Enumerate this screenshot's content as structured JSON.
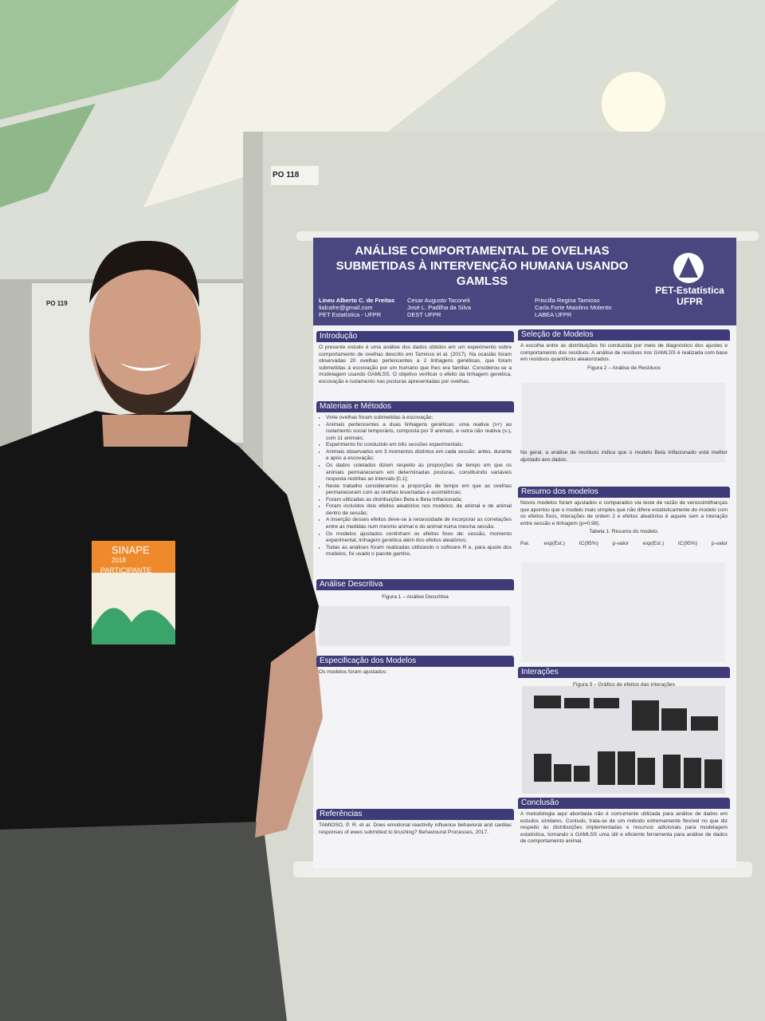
{
  "booth_labels": [
    "PO 118",
    "PO 119"
  ],
  "badge": {
    "event": "SINAPE",
    "year": "2018",
    "role": "PARTICIPANTE"
  },
  "poster": {
    "title": "ANÁLISE COMPORTAMENTAL DE OVELHAS SUBMETIDAS À INTERVENÇÃO HUMANA USANDO GAMLSS",
    "logo": {
      "name": "PET-Estatística",
      "org": "UFPR"
    },
    "authors": [
      {
        "name": "Lineu Alberto C. de Freitas",
        "line2": "lialcafre@gmail.com",
        "line3": "PET Estatística - UFPR"
      },
      {
        "name": "Cesar Augusto Taconeli",
        "line2": "José L. Padilha da Silva",
        "line3": "DEST UFPR"
      },
      {
        "name": "Priscilla Regina Tamioso",
        "line2": "Carla Forte Maiolino Molento",
        "line3": "LABEA UFPR"
      }
    ],
    "left": [
      {
        "heading": "Introdução",
        "text": "O presente estudo é uma análise dos dados obtidos em um experimento sobre comportamento de ovelhas descrito em Tamioso et al. (2017). Na ocasião foram observadas 20 ovelhas pertencentes a 2 linhagens genéticas, que foram submetidas à escovação por um humano que lhes era familiar. Considerou-se a modelagem usando GAMLSS. O objetivo verificar o efeito da linhagem genética, escovação e isolamento nas posturas apresentadas por ovelhas."
      },
      {
        "heading": "Materiais e Métodos",
        "bullets": [
          "Vinte ovelhas foram submetidas à escovação;",
          "Animais pertencentes a duas linhagens genéticas: uma reativa (s+) ao isolamento social temporário, composta por 9 animais, e outra não reativa (s-), com 11 animais;",
          "Experimento foi conduzido em três sessões experimentais;",
          "Animais observados em 3 momentos distintos em cada sessão: antes, durante e após a escovação;",
          "Os dados coletados dizem respeito às proporções de tempo em que os animais permaneceram em determinadas posturas, constituindo variáveis resposta restritas ao intervalo [0,1];",
          "Neste trabalho consideramos a proporção de tempo em que as ovelhas permaneceram com as orelhas levantadas e assimétricas;",
          "Foram utilizadas as distribuições Beta e Beta Inflacionada;",
          "Foram incluídos dois efeitos aleatórios nos modelos: de animal e de animal dentro de sessão;",
          "A inserção desses efeitos deve-se à necessidade de incorporar as correlações entre as medidas num mesmo animal e do animal numa mesma sessão.",
          "Os modelos ajustados continham os efeitos fixos de: sessão, momento experimental, linhagem genética além dos efeitos aleatórios;",
          "Todas as análises foram realizadas utilizando o software R e, para ajuste dos modelos, foi usado o pacote gamlss."
        ]
      },
      {
        "heading": "Análise Descritiva",
        "caption": "Figura 1 – Análise Descritiva"
      },
      {
        "heading": "Especificação dos Modelos",
        "text": "Os modelos foram ajustados:"
      },
      {
        "heading": "Referências",
        "text": "TAMIOSO, P. R. et al. Does emotional reactivity influence behavioral and cardiac responses of ewes submitted to brushing? Behavioural Processes, 2017."
      }
    ],
    "right": [
      {
        "heading": "Seleção de Modelos",
        "text": "A escolha entre as distribuições foi conduzida por meio de diagnóstico dos ajustes e comportamento dos resíduos. A análise de resíduos nos GAMLSS é realizada com base em resíduos quantílicos aleatorizados.",
        "caption": "Figura 2 – Análise de Resíduos",
        "text2": "No geral, a análise de resíduos indica que o modelo Beta Inflacionado está melhor ajustado aos dados."
      },
      {
        "heading": "Resumo dos modelos",
        "text": "Novos modelos foram ajustados e comparados via teste de razão de verossimilhanças que apontou que o modelo mais simples que não difere estatisticamente do modelo com os efeitos fixos, interações de ordem 2 e efeitos aleatórios é aquele sem a interação entre sessão e linhagem (p=0,98).",
        "caption": "Tabela 1: Resumo do modelo.",
        "columns": [
          "Par.",
          "exp(Est.)",
          "IC(95%)",
          "p-valor",
          "exp(Est.)",
          "IC(95%)",
          "p-valor"
        ]
      },
      {
        "heading": "Interações",
        "caption": "Figura 3 – Gráfico de efeitos das interações"
      },
      {
        "heading": "Conclusão",
        "text": "A metodologia aqui abordada não é comumente utilizada para análise de dados em estudos similares. Contudo, trata-se de um método extremamente flexível no que diz respeito às distribuições implementadas e recursos adicionais para modelagem estatística, tornando o GAMLSS uma útil e eficiente ferramenta para análise de dados de comportamento animal."
      }
    ]
  }
}
